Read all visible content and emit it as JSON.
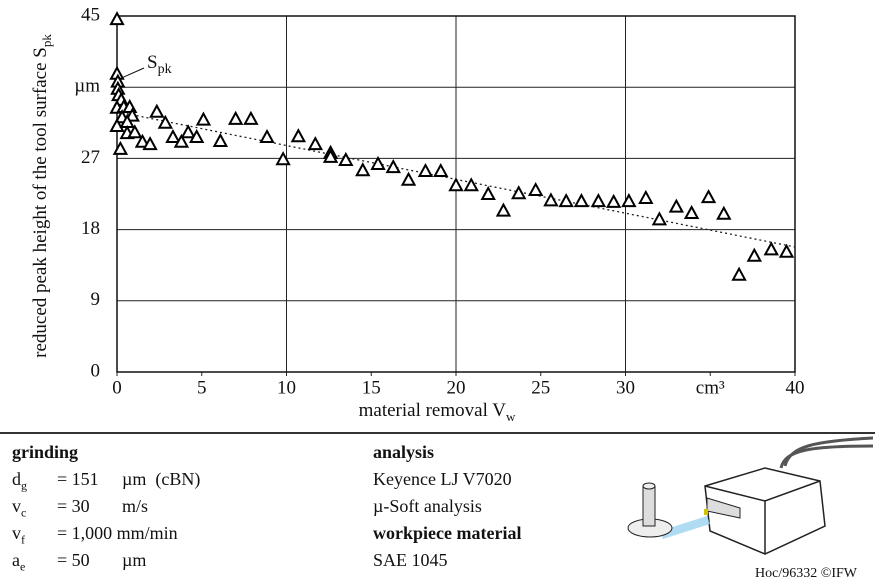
{
  "chart_data": {
    "type": "scatter",
    "ylabel": {
      "text": "reduced peak height of the tool surface S",
      "sub": "pk"
    },
    "xlabel": {
      "text": "material removal V",
      "sub": "w"
    },
    "annotation": {
      "text": "S",
      "sub": "pk"
    },
    "xlim": [
      0,
      40
    ],
    "ylim": [
      0,
      45
    ],
    "xticks": [
      0,
      5,
      10,
      15,
      20,
      25,
      30,
      {
        "value": 35,
        "label": "cm³"
      },
      40
    ],
    "yticks": [
      0,
      9,
      18,
      27,
      {
        "value": 36,
        "label": "µm"
      },
      45
    ],
    "x_grid": [
      10,
      20,
      30
    ],
    "grid": true,
    "series": [
      {
        "color": "#000000",
        "marker": "triangle",
        "x": [
          0,
          0,
          0.05,
          0.05,
          0.1,
          0.25,
          0,
          0.4,
          0.75,
          0.3,
          0.9,
          0,
          0.6,
          0.2,
          0.6,
          1.05,
          1.5,
          1.95,
          2.35,
          2.85,
          3.3,
          3.8,
          4.2,
          4.7,
          5.1,
          6.1,
          7.0,
          7.9,
          8.85,
          9.8,
          10.7,
          11.7,
          12.6,
          12.6,
          13.5,
          14.5,
          15.4,
          16.3,
          17.2,
          18.2,
          19.1,
          20.0,
          20.9,
          21.9,
          22.8,
          23.7,
          24.7,
          25.6,
          26.5,
          27.4,
          28.4,
          29.3,
          30.2,
          31.2,
          32.0,
          33.0,
          33.9,
          34.9,
          35.8,
          36.7,
          37.6,
          38.6,
          39.5
        ],
        "values": [
          44.6,
          37.7,
          36.7,
          35.8,
          35.0,
          34.4,
          33.4,
          33.5,
          33.5,
          32.2,
          32.4,
          31.1,
          31.6,
          28.2,
          30.2,
          30.3,
          29.1,
          28.8,
          32.9,
          31.5,
          29.7,
          29.1,
          30.3,
          29.7,
          31.9,
          29.2,
          32.0,
          32.0,
          29.7,
          26.9,
          29.8,
          28.8,
          27.7,
          27.2,
          26.8,
          25.5,
          26.3,
          25.9,
          24.3,
          25.4,
          25.4,
          23.6,
          23.6,
          22.5,
          20.4,
          22.6,
          23.0,
          21.7,
          21.6,
          21.6,
          21.6,
          21.5,
          21.6,
          22.0,
          19.3,
          20.9,
          20.1,
          22.1,
          20.0,
          12.3,
          14.7,
          15.5,
          15.2
        ]
      }
    ],
    "trend": {
      "x": [
        0,
        40
      ],
      "values": [
        32.9,
        15.8
      ]
    }
  },
  "parameters": {
    "title": "grinding",
    "rows": [
      {
        "symbol": "d",
        "sub": "g",
        "value": "= 151",
        "unit": "µm  (cBN)"
      },
      {
        "symbol": "v",
        "sub": "c",
        "value": "= 30",
        "unit": "m/s"
      },
      {
        "symbol": "v",
        "sub": "f",
        "value": "= 1,000 mm/min",
        "unit": ""
      },
      {
        "symbol": "a",
        "sub": "e",
        "value": "= 50",
        "unit": "µm"
      }
    ]
  },
  "analysis": {
    "title": "analysis",
    "lines": [
      "Keyence LJ V7020",
      "µ-Soft analysis"
    ]
  },
  "workpiece": {
    "title": "workpiece material",
    "lines": [
      "SAE 1045"
    ]
  },
  "footer": "Hoc/96332 ©IFW"
}
